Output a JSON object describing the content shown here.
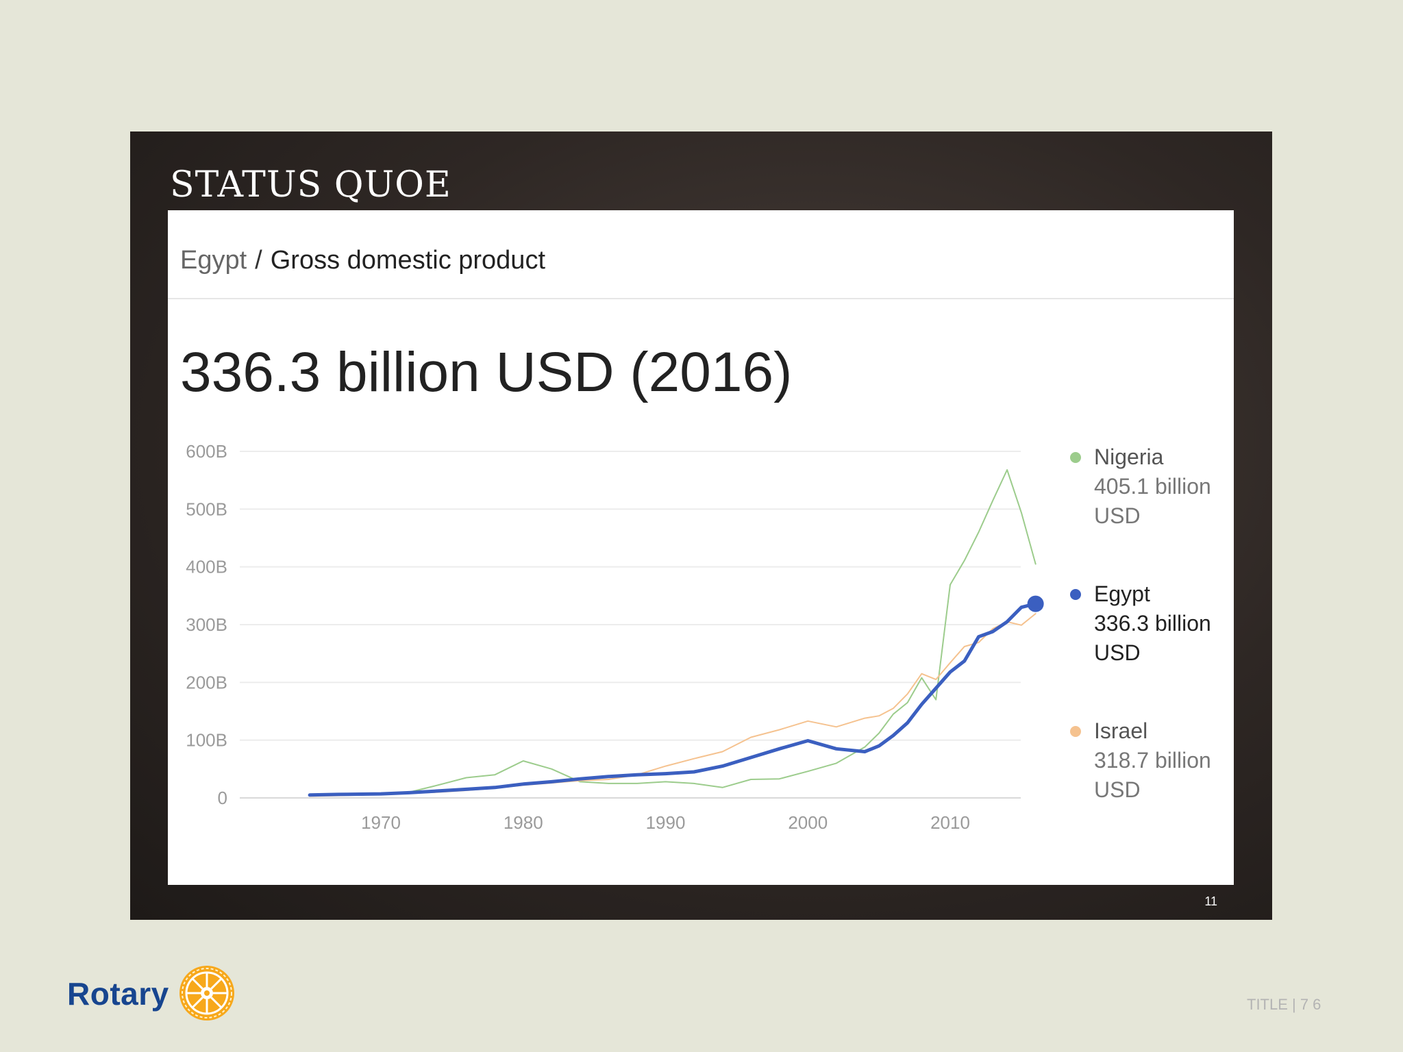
{
  "slide": {
    "title": "STATUS QUOE",
    "number": "11"
  },
  "card": {
    "breadcrumb_country": "Egypt",
    "breadcrumb_separator": "/",
    "breadcrumb_metric": "Gross domestic product",
    "headline": "336.3 billion USD (2016)"
  },
  "chart_data": {
    "type": "line",
    "title": "336.3 billion USD (2016)",
    "xlabel": "",
    "ylabel": "",
    "xlim": [
      1960,
      2016
    ],
    "ylim": [
      0,
      600
    ],
    "y_ticks": [
      0,
      100,
      200,
      300,
      400,
      500,
      600
    ],
    "y_tick_labels": [
      "0",
      "100B",
      "200B",
      "300B",
      "400B",
      "500B",
      "600B"
    ],
    "x_ticks": [
      1970,
      1980,
      1990,
      2000,
      2010
    ],
    "x_tick_labels": [
      "1970",
      "1980",
      "1990",
      "2000",
      "2010"
    ],
    "grid": true,
    "legend_position": "right",
    "x": [
      1965,
      1967,
      1970,
      1972,
      1974,
      1976,
      1978,
      1980,
      1982,
      1984,
      1986,
      1988,
      1990,
      1992,
      1994,
      1996,
      1998,
      2000,
      2002,
      2004,
      2005,
      2006,
      2007,
      2008,
      2009,
      2010,
      2011,
      2012,
      2013,
      2014,
      2015,
      2016
    ],
    "series": [
      {
        "name": "Nigeria",
        "color": "#9ccc8c",
        "width": 2,
        "legend_value": "405.1 billion",
        "legend_unit": "USD",
        "values": [
          5,
          6,
          8,
          10,
          22,
          35,
          40,
          64,
          50,
          28,
          25,
          25,
          28,
          25,
          18,
          32,
          33,
          46,
          60,
          88,
          112,
          145,
          165,
          208,
          170,
          369,
          411,
          460,
          515,
          568,
          494,
          405
        ]
      },
      {
        "name": "Egypt",
        "color": "#3b5fc0",
        "width": 5,
        "legend_value": "336.3 billion",
        "legend_unit": "USD",
        "values": [
          5,
          6,
          7,
          9,
          12,
          15,
          18,
          24,
          28,
          33,
          37,
          40,
          42,
          45,
          55,
          70,
          85,
          99,
          85,
          80,
          90,
          108,
          130,
          162,
          190,
          218,
          237,
          279,
          288,
          305,
          330,
          336
        ]
      },
      {
        "name": "Israel",
        "color": "#f5c28f",
        "width": 2,
        "legend_value": "318.7 billion",
        "legend_unit": "USD",
        "values": [
          3,
          4,
          6,
          8,
          10,
          13,
          17,
          22,
          26,
          30,
          32,
          40,
          55,
          68,
          80,
          105,
          118,
          133,
          123,
          138,
          142,
          155,
          180,
          215,
          205,
          234,
          262,
          269,
          293,
          305,
          299,
          319
        ]
      }
    ]
  },
  "footer": {
    "logo_text": "Rotary",
    "text": "TITLE | 7 6"
  }
}
